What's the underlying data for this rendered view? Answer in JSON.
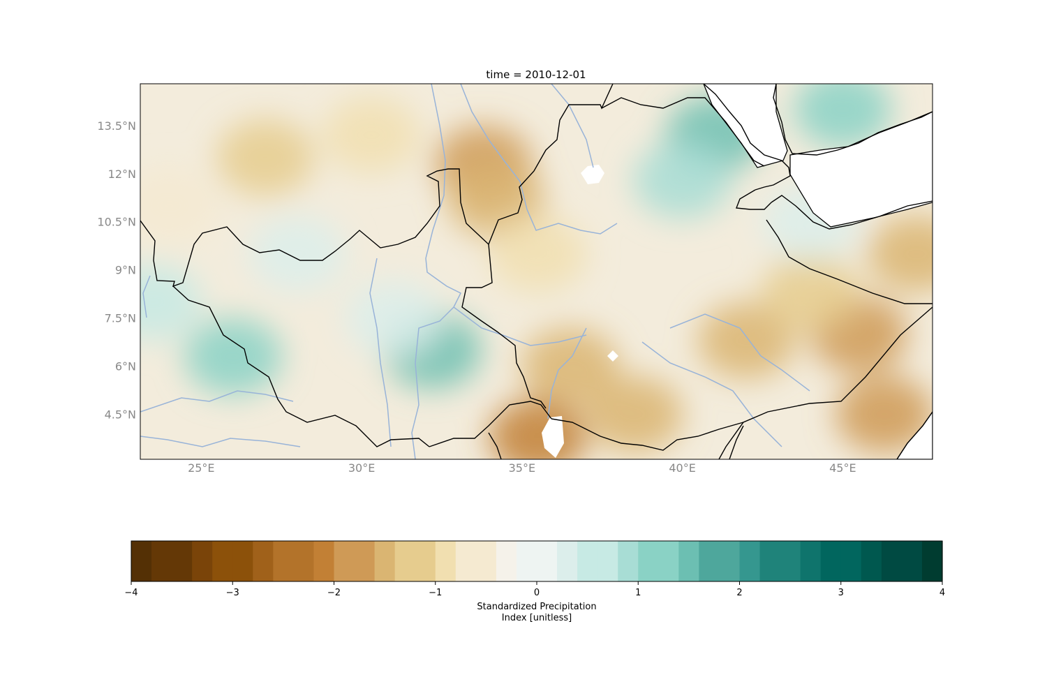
{
  "chart_data": {
    "type": "heatmap",
    "title": "time = 2010-12-01",
    "colorbar_label_lines": [
      "Standardized Precipitation",
      "Index [unitless]"
    ],
    "colorbar": {
      "vmin": -4,
      "vmax": 4,
      "levels": 40,
      "ticks": [
        -4,
        -3,
        -2,
        -1,
        0,
        1,
        2,
        3,
        4
      ],
      "tick_labels": [
        "−4",
        "−3",
        "−2",
        "−1",
        "0",
        "1",
        "2",
        "3",
        "4"
      ],
      "colormap": "BrBG",
      "colors": [
        "#543005",
        "#643806",
        "#7a4409",
        "#8c510a",
        "#a0611a",
        "#b3732a",
        "#c28035",
        "#cf9a56",
        "#dab572",
        "#e6cc8e",
        "#f1dfb0",
        "#f5ead1",
        "#f5f2ea",
        "#eef4f2",
        "#dceeeb",
        "#c7eae4",
        "#a8ddd5",
        "#8ad2c5",
        "#6cbfb2",
        "#4ea79c",
        "#35978f",
        "#1f837a",
        "#0f746c",
        "#01665e",
        "#00584f",
        "#004a42",
        "#003c30"
      ]
    },
    "x_axis": {
      "range": [
        23.1,
        47.8
      ],
      "ticks": [
        25,
        30,
        35,
        40,
        45
      ],
      "tick_labels": [
        "25°E",
        "30°E",
        "35°E",
        "40°E",
        "45°E"
      ]
    },
    "y_axis": {
      "range": [
        3.1,
        14.8
      ],
      "ticks": [
        4.5,
        6,
        7.5,
        9,
        10.5,
        12,
        13.5
      ],
      "tick_labels": [
        "4.5°N",
        "6°N",
        "7.5°N",
        "9°N",
        "10.5°N",
        "12°N",
        "13.5°N"
      ]
    },
    "field_anomalies": [
      {
        "lon": 33.8,
        "lat": 12.3,
        "spi": -1.9
      },
      {
        "lon": 34.2,
        "lat": 11.2,
        "spi": -1.5
      },
      {
        "lon": 27.0,
        "lat": 12.5,
        "spi": -1.2
      },
      {
        "lon": 30.3,
        "lat": 13.2,
        "spi": -0.9
      },
      {
        "lon": 35.5,
        "lat": 9.5,
        "spi": -1.0
      },
      {
        "lon": 36.5,
        "lat": 6.0,
        "spi": -1.4
      },
      {
        "lon": 35.5,
        "lat": 3.8,
        "spi": -2.2
      },
      {
        "lon": 38.5,
        "lat": 4.5,
        "spi": -1.5
      },
      {
        "lon": 42.0,
        "lat": 6.8,
        "spi": -1.5
      },
      {
        "lon": 45.5,
        "lat": 7.0,
        "spi": -1.8
      },
      {
        "lon": 46.3,
        "lat": 4.5,
        "spi": -1.9
      },
      {
        "lon": 44.0,
        "lat": 8.3,
        "spi": -1.2
      },
      {
        "lon": 47.3,
        "lat": 9.5,
        "spi": -1.5
      },
      {
        "lon": 41.0,
        "lat": 13.2,
        "spi": 1.6
      },
      {
        "lon": 40.0,
        "lat": 11.8,
        "spi": 1.0
      },
      {
        "lon": 45.0,
        "lat": 14.0,
        "spi": 1.2
      },
      {
        "lon": 32.2,
        "lat": 6.5,
        "spi": 1.4
      },
      {
        "lon": 26.0,
        "lat": 6.3,
        "spi": 1.1
      },
      {
        "lon": 23.5,
        "lat": 8.0,
        "spi": 0.6
      },
      {
        "lon": 31.0,
        "lat": 7.5,
        "spi": 0.4
      },
      {
        "lon": 28.0,
        "lat": 9.5,
        "spi": 0.2
      },
      {
        "lon": 24.0,
        "lat": 11.0,
        "spi": -0.6
      },
      {
        "lon": 44.0,
        "lat": 10.5,
        "spi": 0.3
      }
    ]
  }
}
